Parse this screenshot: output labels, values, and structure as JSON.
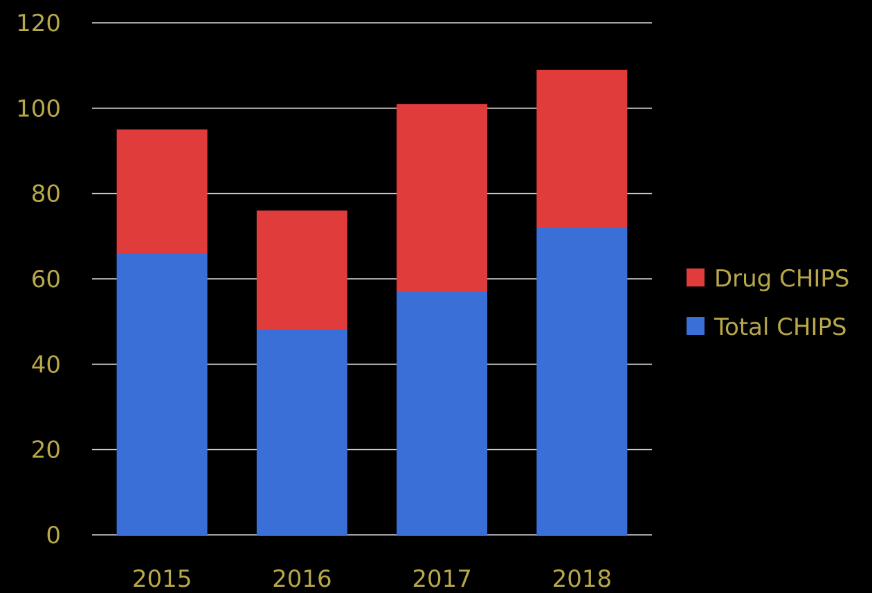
{
  "chart_data": {
    "type": "bar",
    "stacked": true,
    "categories": [
      "2015",
      "2016",
      "2017",
      "2018"
    ],
    "series": [
      {
        "name": "Total CHIPS",
        "color": "#3a6fd8",
        "values": [
          66,
          48,
          57,
          72
        ]
      },
      {
        "name": "Drug CHIPS",
        "color": "#e13c3c",
        "values": [
          29,
          28,
          44,
          37
        ]
      }
    ],
    "ylim": [
      0,
      120
    ],
    "yticks": [
      0,
      20,
      40,
      60,
      80,
      100,
      120
    ],
    "grid": true,
    "legend_position": "right",
    "legend_order": [
      "Drug CHIPS",
      "Total CHIPS"
    ],
    "text_color": "#b8a84a",
    "grid_color": "#d9d9d9",
    "background": "#000000"
  }
}
